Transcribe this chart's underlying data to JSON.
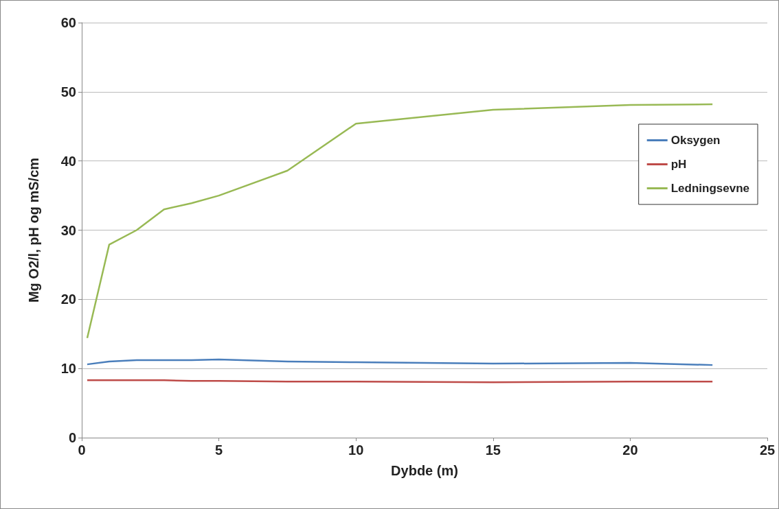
{
  "chart_data": {
    "type": "line",
    "xlabel": "Dybde (m)",
    "ylabel": "Mg O2/l, pH og mS/cm",
    "x": [
      0.2,
      1,
      2,
      3,
      4,
      5,
      7.5,
      10,
      15,
      20,
      23
    ],
    "series": [
      {
        "name": "Oksygen",
        "color": "#4a7ebb",
        "values": [
          10.6,
          11.0,
          11.2,
          11.2,
          11.2,
          11.3,
          11.0,
          10.9,
          10.7,
          10.8,
          10.5
        ]
      },
      {
        "name": "pH",
        "color": "#be4b48",
        "values": [
          8.3,
          8.3,
          8.3,
          8.3,
          8.2,
          8.2,
          8.1,
          8.1,
          8.0,
          8.1,
          8.1
        ]
      },
      {
        "name": "Ledningsevne",
        "color": "#98b954",
        "values": [
          14.4,
          27.9,
          30.0,
          33.0,
          33.9,
          35.0,
          38.6,
          45.4,
          47.4,
          48.1,
          48.2
        ]
      }
    ],
    "xlim": [
      0,
      25
    ],
    "xticks": [
      0,
      5,
      10,
      15,
      20,
      25
    ],
    "ylim": [
      0,
      60
    ],
    "yticks": [
      0,
      10,
      20,
      30,
      40,
      50,
      60
    ],
    "grid": "y",
    "legend": "right",
    "marker": "none",
    "line_style": "solid"
  }
}
